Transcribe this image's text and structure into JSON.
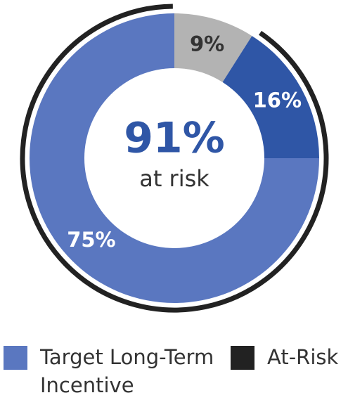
{
  "chart_data": {
    "type": "donut",
    "values": [
      9,
      16,
      75
    ],
    "value_labels": [
      "9%",
      "16%",
      "75%"
    ],
    "colors": [
      "#b3b3b3",
      "#2f56a6",
      "#5a77c0"
    ],
    "label_colors": [
      "#333333",
      "#ffffff",
      "#ffffff"
    ],
    "at_risk": {
      "value": 91,
      "label": "91%",
      "text": "at risk",
      "color": "#222222",
      "label_color": "#2f56a6"
    },
    "legend": [
      {
        "name": "Target Long-Term Incentive",
        "color": "#5a77c0"
      },
      {
        "name": "At-Risk",
        "color": "#222222"
      }
    ]
  }
}
